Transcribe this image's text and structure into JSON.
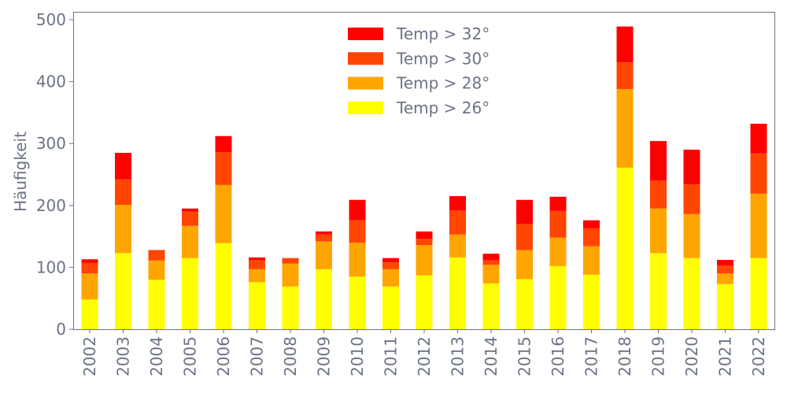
{
  "chart_data": {
    "type": "bar",
    "stacked": true,
    "title": "",
    "xlabel": "",
    "ylabel": "Häufigkeit",
    "ylim": [
      0,
      512
    ],
    "yticks": [
      0,
      100,
      200,
      300,
      400,
      500
    ],
    "grid": false,
    "legend_position": "top-center",
    "categories": [
      "2002",
      "2003",
      "2004",
      "2005",
      "2006",
      "2007",
      "2008",
      "2009",
      "2010",
      "2011",
      "2012",
      "2013",
      "2014",
      "2015",
      "2016",
      "2017",
      "2018",
      "2019",
      "2020",
      "2021",
      "2022"
    ],
    "series": [
      {
        "name": "Temp > 26°",
        "color": "#ffff00",
        "values": [
          48,
          123,
          80,
          115,
          139,
          76,
          69,
          97,
          85,
          69,
          87,
          116,
          74,
          81,
          102,
          88,
          261,
          123,
          115,
          73,
          115
        ]
      },
      {
        "name": "Temp > 28°",
        "color": "#ffa500",
        "values": [
          42,
          78,
          31,
          52,
          94,
          21,
          37,
          45,
          55,
          28,
          49,
          37,
          30,
          47,
          46,
          46,
          127,
          72,
          71,
          17,
          104
        ]
      },
      {
        "name": "Temp > 30°",
        "color": "#ff4500",
        "values": [
          17,
          41,
          17,
          23,
          53,
          15,
          9,
          11,
          36,
          11,
          10,
          39,
          7,
          42,
          43,
          29,
          43,
          45,
          48,
          13,
          65
        ]
      },
      {
        "name": "Temp > 32°",
        "color": "#ff0000",
        "values": [
          6,
          43,
          0,
          5,
          26,
          4,
          0,
          5,
          33,
          7,
          12,
          23,
          11,
          39,
          23,
          13,
          58,
          64,
          56,
          9,
          48
        ]
      }
    ]
  }
}
